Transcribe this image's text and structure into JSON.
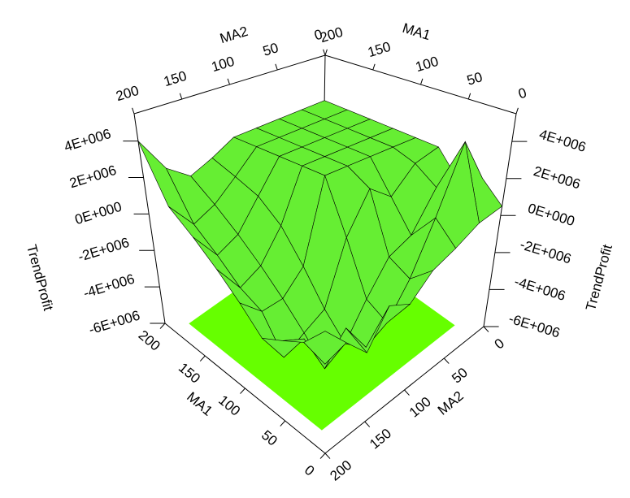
{
  "chart_data": {
    "type": "surface",
    "xlabel": "MA1",
    "ylabel": "MA2",
    "zlabel": "TrendProfit",
    "x": [
      0,
      25,
      50,
      75,
      100,
      125,
      150,
      175,
      200
    ],
    "y": [
      0,
      25,
      50,
      75,
      100,
      125,
      150,
      175,
      200
    ],
    "z": [
      [
        500000,
        1500000,
        800000,
        2200000,
        2200000,
        2200000,
        2200000,
        2200000,
        2200000
      ],
      [
        200000,
        4000000,
        1000000,
        1800000,
        2200000,
        2200000,
        2200000,
        2200000,
        2200000
      ],
      [
        -500000,
        500000,
        -1000000,
        500000,
        2200000,
        2200000,
        2200000,
        2200000,
        2200000
      ],
      [
        -1000000,
        -2000000,
        -1500000,
        1500000,
        2200000,
        2200000,
        2200000,
        2200000,
        2200000
      ],
      [
        -2000000,
        -3500000,
        -3000000,
        -500000,
        2200000,
        2200000,
        2200000,
        2200000,
        2200000
      ],
      [
        -1500000,
        -4000000,
        -4500000,
        -3500000,
        -2000000,
        -500000,
        500000,
        1000000,
        1500000
      ],
      [
        -3000000,
        -2500000,
        -5000000,
        -4000000,
        -3000000,
        -2000000,
        -1000000,
        0,
        1000000
      ],
      [
        -2000000,
        -3500000,
        -3000000,
        -4500000,
        -3000000,
        -2500000,
        -1500000,
        -500000,
        2000000
      ],
      [
        -1000000,
        -2000000,
        -2500000,
        -3000000,
        -2000000,
        -1000000,
        0,
        1000000,
        4000000
      ]
    ],
    "color": "#66ee33",
    "floor_color": "#66ff00",
    "xlim": [
      0,
      200
    ],
    "xticks": [
      0,
      50,
      100,
      150,
      200
    ],
    "ylim": [
      0,
      200
    ],
    "yticks": [
      0,
      50,
      100,
      150,
      200
    ],
    "zlim": [
      -6000000,
      5500000
    ],
    "zticks": [
      {
        "value": -6000000,
        "label": "-6E+006"
      },
      {
        "value": -4000000,
        "label": "-4E+006"
      },
      {
        "value": -2000000,
        "label": "-2E+006"
      },
      {
        "value": 0,
        "label": "0E+000"
      },
      {
        "value": 2000000,
        "label": "2E+006"
      },
      {
        "value": 4000000,
        "label": "4E+006"
      }
    ]
  }
}
